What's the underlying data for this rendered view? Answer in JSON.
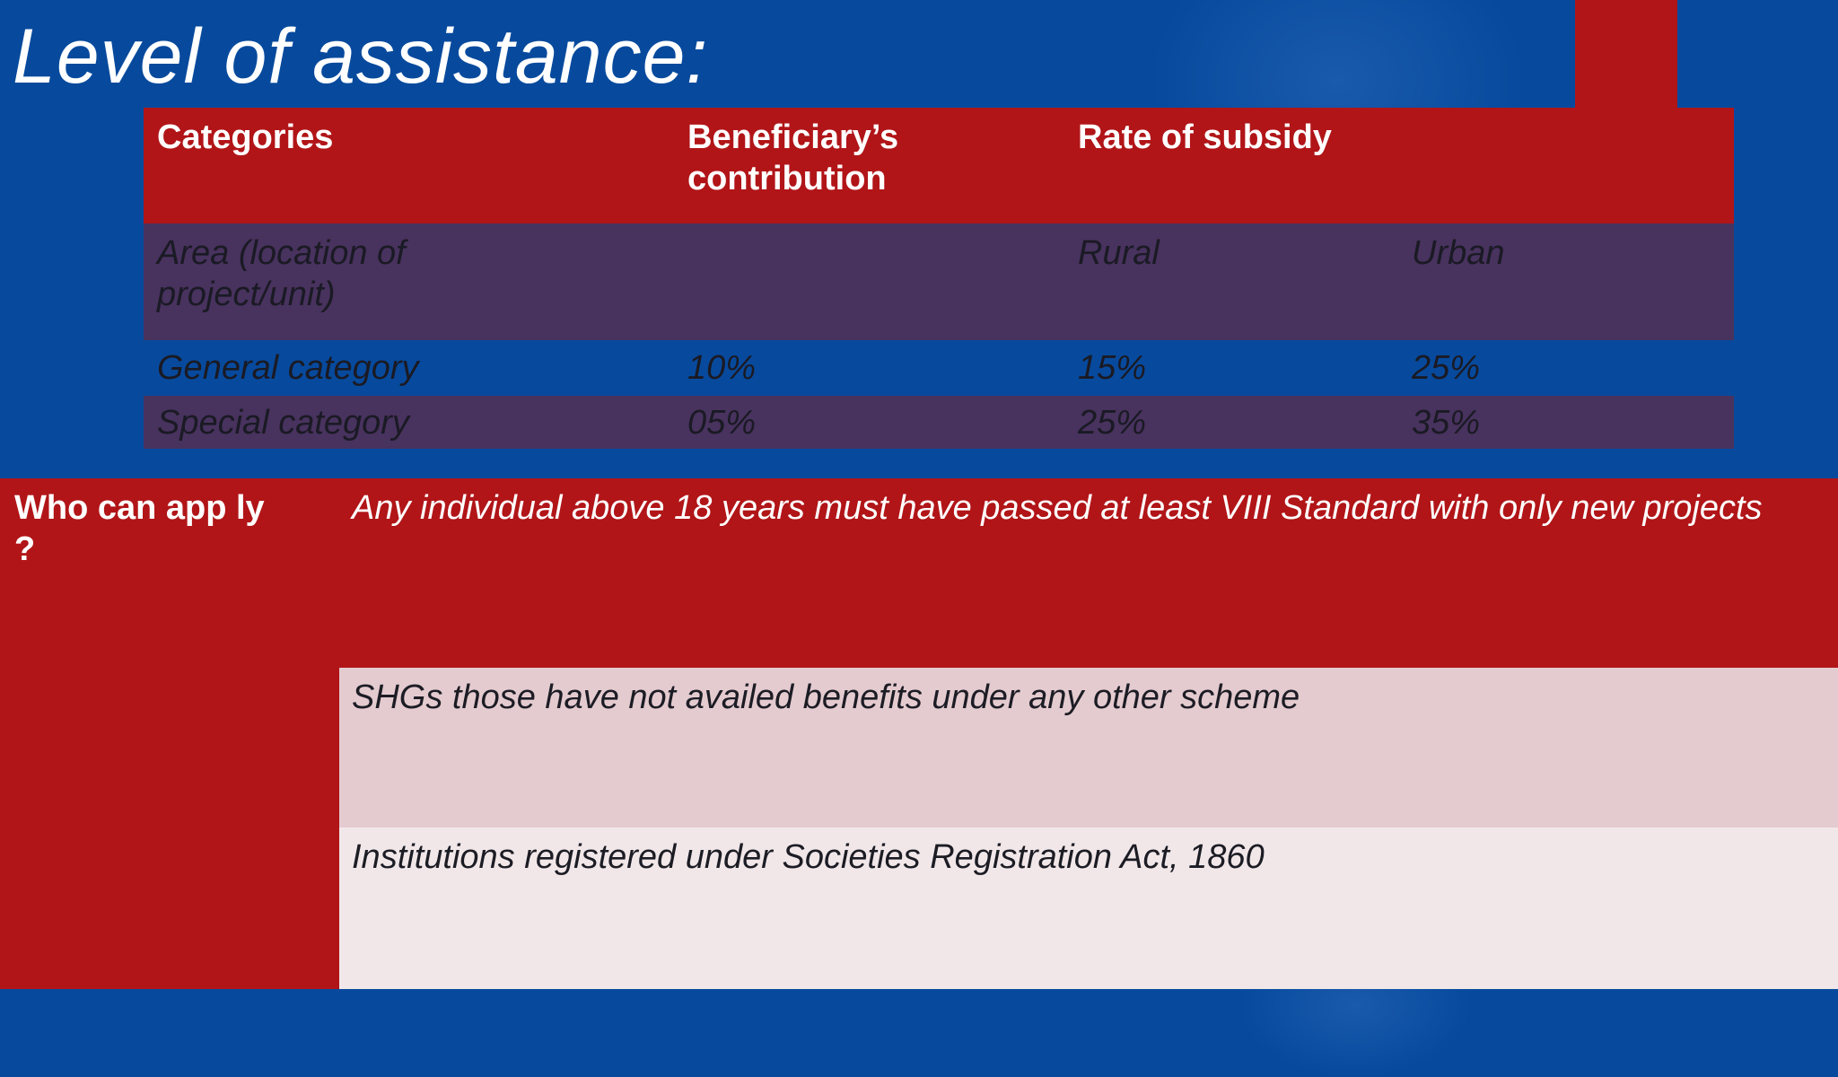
{
  "slide": {
    "title": "Level of assistance:"
  },
  "table": {
    "headers": [
      "Categories",
      "Beneficiary’s contribution",
      "Rate of subsidy"
    ],
    "rows": [
      [
        "Area (location of project/unit)",
        "",
        "Rural",
        "Urban"
      ],
      [
        "General category",
        "10%",
        "15%",
        "25%"
      ],
      [
        "Special category",
        "05%",
        "25%",
        "35%"
      ]
    ]
  },
  "eligibility": {
    "label": "Who can app ly ?",
    "items": [
      "Any individual above 18 years must have passed at least VIII  Standard with only new projects",
      "SHGs those  have not availed benefits under any other scheme",
      "Institutions registered under Societies   Registration Act, 1860"
    ]
  },
  "colors": {
    "background": "#074a9d",
    "accent_red": "#b11518",
    "row_purple": "#48325e",
    "light_pink": "#e4cbd0",
    "lighter_pink": "#f1e7e9"
  }
}
